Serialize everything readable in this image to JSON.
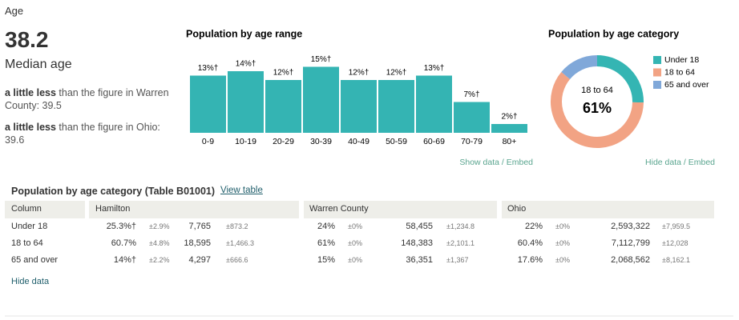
{
  "section_title": "Age",
  "median": {
    "value": 38.2,
    "label": "Median age"
  },
  "comparisons": [
    {
      "emphasis": "a little less",
      "text": "than the figure in Warren County: 39.5"
    },
    {
      "emphasis": "a little less",
      "text": "than the figure in Ohio: 39.6"
    }
  ],
  "chart_data": [
    {
      "type": "bar",
      "title": "Population by age range",
      "categories": [
        "0-9",
        "10-19",
        "20-29",
        "30-39",
        "40-49",
        "50-59",
        "60-69",
        "70-79",
        "80+"
      ],
      "values": [
        13,
        14,
        12,
        15,
        12,
        12,
        13,
        7,
        2
      ],
      "value_labels": [
        "13%†",
        "14%†",
        "12%†",
        "15%†",
        "12%†",
        "12%†",
        "13%†",
        "7%†",
        "2%†"
      ],
      "color": "#34b4b3",
      "link": "Show data / Embed"
    },
    {
      "type": "donut",
      "title": "Population by age category",
      "categories": [
        "Under 18",
        "18 to 64",
        "65 and over"
      ],
      "values": [
        25.3,
        60.7,
        14
      ],
      "colors": [
        "#34b5b3",
        "#f2a384",
        "#80a8d9"
      ],
      "center_label": "61%",
      "link": "Hide data / Embed"
    }
  ],
  "table": {
    "title": "Population by age category (Table B01001)",
    "link": "View table",
    "columns": [
      "Column",
      "Hamilton",
      "Warren County",
      "Ohio"
    ],
    "rows": [
      [
        "Under 18",
        "25.3%†",
        "±2.9%",
        "7,765",
        "±873.2",
        "24%",
        "±0%",
        "58,455",
        "±1,234.8",
        "22%",
        "±0%",
        "2,593,322",
        "±7,959.5"
      ],
      [
        "18 to 64",
        "60.7%",
        "±4.8%",
        "18,595",
        "±1,466.3",
        "61%",
        "±0%",
        "148,383",
        "±2,101.1",
        "60.4%",
        "±0%",
        "7,112,799",
        "±12,028"
      ],
      [
        "65 and over",
        "14%†",
        "±2.2%",
        "4,297",
        "±666.6",
        "15%",
        "±0%",
        "36,351",
        "±1,367",
        "17.6%",
        "±0%",
        "2,068,562",
        "±8,162.1"
      ]
    ],
    "hide": "Hide data"
  }
}
